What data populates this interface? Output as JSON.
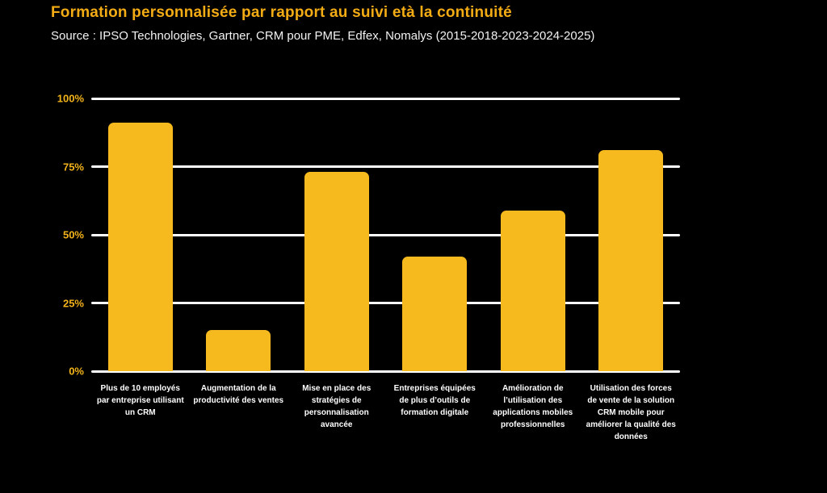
{
  "title": "Formation personnalisée par rapport au suivi età la continuité",
  "subtitle": "Source : IPSO Technologies, Gartner, CRM pour PME, Edfex, Nomalys (2015-2018-2023-2024-2025)",
  "colors": {
    "background": "#000000",
    "title": "#F4AC15",
    "subtitle": "#F2F2F2",
    "bar": "#F7BA1E",
    "gridline": "#FFFFFF",
    "axis_tick_label": "#F3B31A",
    "category_label": "#FFFFFF"
  },
  "chart_data": {
    "type": "bar",
    "title": "Formation personnalisée par rapport au suivi età la continuité",
    "subtitle": "Source : IPSO Technologies, Gartner, CRM pour PME, Edfex, Nomalys (2015-2018-2023-2024-2025)",
    "categories": [
      "Plus de 10 employés par entreprise utilisant un CRM",
      "Augmentation de la productivité des ventes",
      "Mise en place des stratégies de personnalisation avancée",
      "Entreprises équipées de plus d’outils de formation digitale",
      "Amélioration de l’utilisation des applications mobiles professionnelles",
      "Utilisation des forces de vente de la solution CRM mobile pour améliorer la qualité des données"
    ],
    "values": [
      91,
      15,
      73,
      42,
      59,
      81
    ],
    "xlabel": "",
    "ylabel": "",
    "ylim": [
      0,
      100
    ],
    "yticks": [
      {
        "value": 0,
        "label": "0%"
      },
      {
        "value": 25,
        "label": "25%"
      },
      {
        "value": 50,
        "label": "50%"
      },
      {
        "value": 75,
        "label": "75%"
      },
      {
        "value": 100,
        "label": "100%"
      }
    ],
    "grid": true,
    "legend": false
  }
}
